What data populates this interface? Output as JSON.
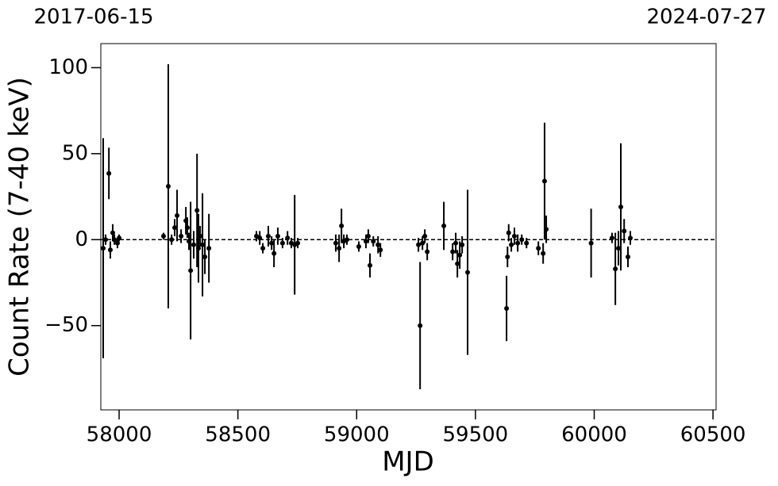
{
  "chart_data": {
    "type": "errorbar-scatter",
    "xlabel": "MJD",
    "ylabel": "Count Rate (7-40 keV)",
    "date_labels": [
      "2017-06-15",
      "2024-07-27"
    ],
    "color": "#000000",
    "hline": 0,
    "xlim": [
      57923,
      60513
    ],
    "ylim": [
      -99,
      114
    ],
    "xticks": [
      58000,
      58500,
      59000,
      59500,
      60000,
      60500
    ],
    "yticks": [
      {
        "value": -50,
        "label": "−50"
      },
      0,
      50,
      100
    ],
    "x": [
      57933,
      57943,
      57957,
      57963,
      57973,
      57980,
      57993,
      58000,
      58187,
      58207,
      58221,
      58234,
      58244,
      58261,
      58281,
      58287,
      58294,
      58301,
      58314,
      58328,
      58334,
      58341,
      58351,
      58361,
      58378,
      58578,
      58592,
      58605,
      58628,
      58642,
      58652,
      58668,
      58688,
      58709,
      58725,
      58739,
      58752,
      58912,
      58926,
      58936,
      58946,
      58959,
      59009,
      59039,
      59049,
      59056,
      59070,
      59090,
      59100,
      59260,
      59267,
      59277,
      59287,
      59297,
      59367,
      59404,
      59417,
      59424,
      59434,
      59444,
      59467,
      59631,
      59635,
      59640,
      59651,
      59664,
      59678,
      59695,
      59715,
      59765,
      59785,
      59791,
      59798,
      59987,
      60075,
      60089,
      60102,
      60112,
      60126,
      60142,
      60152
    ],
    "values": [
      -5,
      0,
      38.5,
      -6,
      4,
      0,
      -2,
      1,
      2,
      31,
      0,
      7,
      14,
      2,
      11,
      7,
      -1,
      -18,
      -3,
      17,
      -5,
      2,
      -3,
      -10,
      -5,
      2,
      1,
      -5,
      2,
      -2,
      -8,
      2,
      -2,
      1,
      -2,
      -3,
      -2,
      -2,
      -5,
      8,
      -1,
      0,
      -4,
      -1,
      2,
      -15,
      -1,
      -3,
      -6,
      -3,
      -50,
      -2,
      2,
      -7,
      8,
      -7,
      -2,
      -14,
      -9,
      -3,
      -19,
      -40,
      -10,
      4,
      -3,
      2,
      -2,
      0,
      -2,
      -5,
      -8,
      34,
      6,
      -2,
      1,
      -17,
      -5,
      19,
      5,
      -10,
      1
    ],
    "errors": [
      64,
      3,
      15,
      5,
      5,
      3,
      3,
      2,
      2,
      71,
      3,
      5,
      15,
      4,
      8,
      6,
      5,
      40,
      8,
      33,
      20,
      6,
      30,
      10,
      20,
      3,
      4,
      3,
      6,
      4,
      8,
      5,
      3,
      4,
      3,
      29,
      3,
      5,
      8,
      10,
      4,
      3,
      3,
      4,
      4,
      7,
      3,
      5,
      4,
      4,
      37,
      4,
      4,
      5,
      14,
      5,
      6,
      8,
      8,
      5,
      48,
      19,
      6,
      5,
      4,
      5,
      5,
      3,
      3,
      4,
      6,
      34,
      8,
      20,
      3,
      21,
      10,
      37,
      7,
      6,
      4
    ]
  }
}
